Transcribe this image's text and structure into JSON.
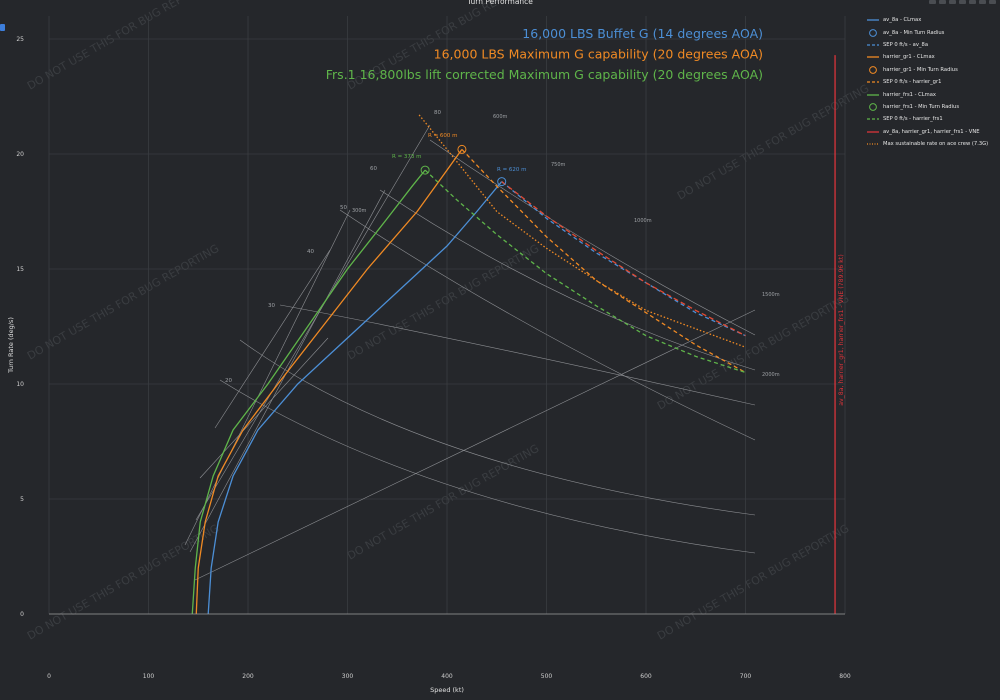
{
  "chart_data": {
    "type": "line",
    "title": "Turn Performance",
    "xlabel": "Speed (kt)",
    "ylabel": "Turn Rate (deg/s)",
    "xlim": [
      0,
      800
    ],
    "ylim": [
      0,
      26
    ],
    "xticks": [
      0,
      100,
      200,
      300,
      400,
      500,
      600,
      700,
      800
    ],
    "yticks": [
      0,
      5,
      10,
      15,
      20,
      25
    ],
    "grid": true,
    "legend_position": "right",
    "annotations": [
      {
        "text": "16,000 LBS Buffet G (14 degrees AOA)",
        "color": "#4c8fd6"
      },
      {
        "text": "16,000 LBS Maximum G capability (20 degrees AOA)",
        "color": "#f08a24"
      },
      {
        "text": "Frs.1 16,800lbs lift corrected Maximum G capability (20 degrees AOA)",
        "color": "#5fb54a"
      }
    ],
    "radius_labels": [
      {
        "label": "300m",
        "speed": 300
      },
      {
        "label": "600m",
        "speed": 445
      },
      {
        "label": "750m",
        "speed": 500
      },
      {
        "label": "1000m",
        "speed": 580
      },
      {
        "label": "1500m",
        "speed": 710
      },
      {
        "label": "2000m",
        "speed": 710
      }
    ],
    "g_labels": [
      "20",
      "30",
      "40",
      "50",
      "60",
      "80"
    ],
    "point_labels": [
      {
        "text": "R = 373 m",
        "color": "#5fb54a"
      },
      {
        "text": "R = 600 m",
        "color": "#f08a24"
      },
      {
        "text": "R = 620 m",
        "color": "#4c8fd6"
      }
    ],
    "series": [
      {
        "name": "av_8a - CLmax",
        "color": "#4c8fd6",
        "x": [
          160,
          163,
          170,
          185,
          210,
          250,
          300,
          350,
          400,
          430,
          455
        ],
        "y": [
          0,
          2,
          4,
          6,
          8,
          10,
          12,
          14,
          16,
          17.5,
          18.8
        ]
      },
      {
        "name": "harrier_gr1 - CLmax",
        "color": "#f08a24",
        "x": [
          148,
          150,
          157,
          170,
          195,
          230,
          275,
          320,
          370,
          400,
          415
        ],
        "y": [
          0,
          2,
          4,
          6,
          8,
          10,
          12.5,
          15,
          17.5,
          19.3,
          20.2
        ]
      },
      {
        "name": "harrier_frs1 - CLmax",
        "color": "#5fb54a",
        "x": [
          144,
          147,
          152,
          165,
          185,
          220,
          260,
          300,
          340,
          365,
          378
        ],
        "y": [
          0,
          2,
          4,
          6,
          8,
          10,
          12.5,
          15,
          17.2,
          18.6,
          19.3
        ]
      },
      {
        "name": "SEP 0 ft/s - av_8a",
        "color": "#4c8fd6",
        "dash": "4,3",
        "x": [
          455,
          500,
          550,
          600,
          650,
          700
        ],
        "y": [
          18.8,
          17.2,
          15.7,
          14.4,
          13.1,
          12.1
        ]
      },
      {
        "name": "SEP 0 ft/s - harrier_gr1",
        "color": "#f08a24",
        "dash": "4,3",
        "x": [
          415,
          450,
          500,
          550,
          600,
          650,
          700
        ],
        "y": [
          20.2,
          18.6,
          16.4,
          14.5,
          13.1,
          11.7,
          10.5
        ]
      },
      {
        "name": "SEP 0 ft/s - harrier_frs1",
        "color": "#5fb54a",
        "dash": "4,3",
        "x": [
          378,
          410,
          450,
          500,
          550,
          600,
          650,
          700
        ],
        "y": [
          19.3,
          18.0,
          16.5,
          14.8,
          13.4,
          12.1,
          11.2,
          10.5
        ]
      },
      {
        "name": "Max sustainable rate on ace crew (7.3G)",
        "color": "#f08a24",
        "dash": "1.5,2",
        "x": [
          372,
          400,
          450,
          500,
          550,
          600,
          650,
          700
        ],
        "y": [
          21.7,
          20.2,
          17.5,
          15.9,
          14.5,
          13.2,
          12.4,
          11.6
        ]
      },
      {
        "name": "Max sustainable SEP line",
        "color": "#e24a33",
        "dash": "5,3",
        "x": [
          455,
          500,
          550,
          600,
          650,
          700
        ],
        "y": [
          18.8,
          17.3,
          15.8,
          14.4,
          13.2,
          12.1
        ]
      }
    ],
    "min_turn_radius_points": [
      {
        "name": "av_8a - Min Turn Radius",
        "color": "#4c8fd6",
        "x": 455,
        "y": 18.8
      },
      {
        "name": "harrier_gr1 - Min Turn Radius",
        "color": "#f08a24",
        "x": 415,
        "y": 20.2
      },
      {
        "name": "harrier_frs1 - Min Turn Radius",
        "color": "#5fb54a",
        "x": 378,
        "y": 19.3
      }
    ],
    "vne": {
      "name": "av_8a, harrier_gr1, harrier_frs1 - VNE",
      "x": 790,
      "color": "#d9343a",
      "label": "av_8a, harrier_gr1, harrier_frs1 - VNE (789.96 kt)"
    },
    "watermark": "DO NOT USE THIS FOR BUG REPORTING"
  },
  "legend": [
    {
      "label": "av_8a - CLmax",
      "color": "#4c8fd6",
      "kind": "line"
    },
    {
      "label": "av_8a - Min Turn Radius",
      "color": "#4c8fd6",
      "kind": "circle"
    },
    {
      "label": "SEP 0 ft/s - av_8a",
      "color": "#4c8fd6",
      "kind": "dash"
    },
    {
      "label": "harrier_gr1 - CLmax",
      "color": "#f08a24",
      "kind": "line"
    },
    {
      "label": "harrier_gr1 - Min Turn Radius",
      "color": "#f08a24",
      "kind": "circle"
    },
    {
      "label": "SEP 0 ft/s - harrier_gr1",
      "color": "#f08a24",
      "kind": "dash"
    },
    {
      "label": "harrier_frs1 - CLmax",
      "color": "#5fb54a",
      "kind": "line"
    },
    {
      "label": "harrier_frs1 - Min Turn Radius",
      "color": "#5fb54a",
      "kind": "circle"
    },
    {
      "label": "SEP 0 ft/s - harrier_frs1",
      "color": "#5fb54a",
      "kind": "dash"
    },
    {
      "label": "av_8a, harrier_gr1, harrier_frs1 - VNE",
      "color": "#d9343a",
      "kind": "line"
    },
    {
      "label": "Max sustainable rate on ace crew (7.3G)",
      "color": "#f08a24",
      "kind": "dot"
    }
  ]
}
